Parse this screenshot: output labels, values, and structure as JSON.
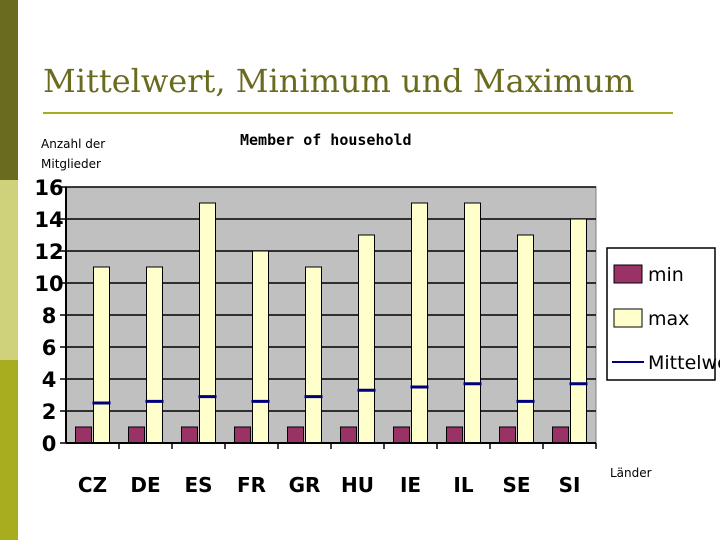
{
  "slide": {
    "title": "Mittelwert, Minimum und Maximum",
    "colors": {
      "sidebar_dark": "#6b6b1f",
      "sidebar_light": "#cfd27a",
      "sidebar_mid": "#a7ad1e",
      "title": "#6b6b1f"
    }
  },
  "chart_data": {
    "type": "bar",
    "title": "Member of household",
    "ylabel": "Anzahl der Mitglieder",
    "xlabel": "Länder",
    "ylim": [
      0,
      16
    ],
    "yticks": [
      0,
      2,
      4,
      6,
      8,
      10,
      12,
      14,
      16
    ],
    "grid": true,
    "legend_position": "right",
    "categories": [
      "CZ",
      "DE",
      "ES",
      "FR",
      "GR",
      "HU",
      "IE",
      "IL",
      "SE",
      "SI"
    ],
    "series": [
      {
        "name": "min",
        "kind": "bar",
        "color": "#993366",
        "values": [
          1,
          1,
          1,
          1,
          1,
          1,
          1,
          1,
          1,
          1
        ]
      },
      {
        "name": "max",
        "kind": "bar",
        "color": "#ffffcc",
        "values": [
          11,
          11,
          15,
          12,
          11,
          13,
          15,
          15,
          13,
          14
        ]
      },
      {
        "name": "Mittelwert",
        "kind": "marker",
        "color": "#000080",
        "values": [
          2.5,
          2.6,
          2.9,
          2.6,
          2.9,
          3.3,
          3.5,
          3.7,
          2.6,
          3.7
        ]
      }
    ],
    "plot_background": "#c0c0c0"
  }
}
